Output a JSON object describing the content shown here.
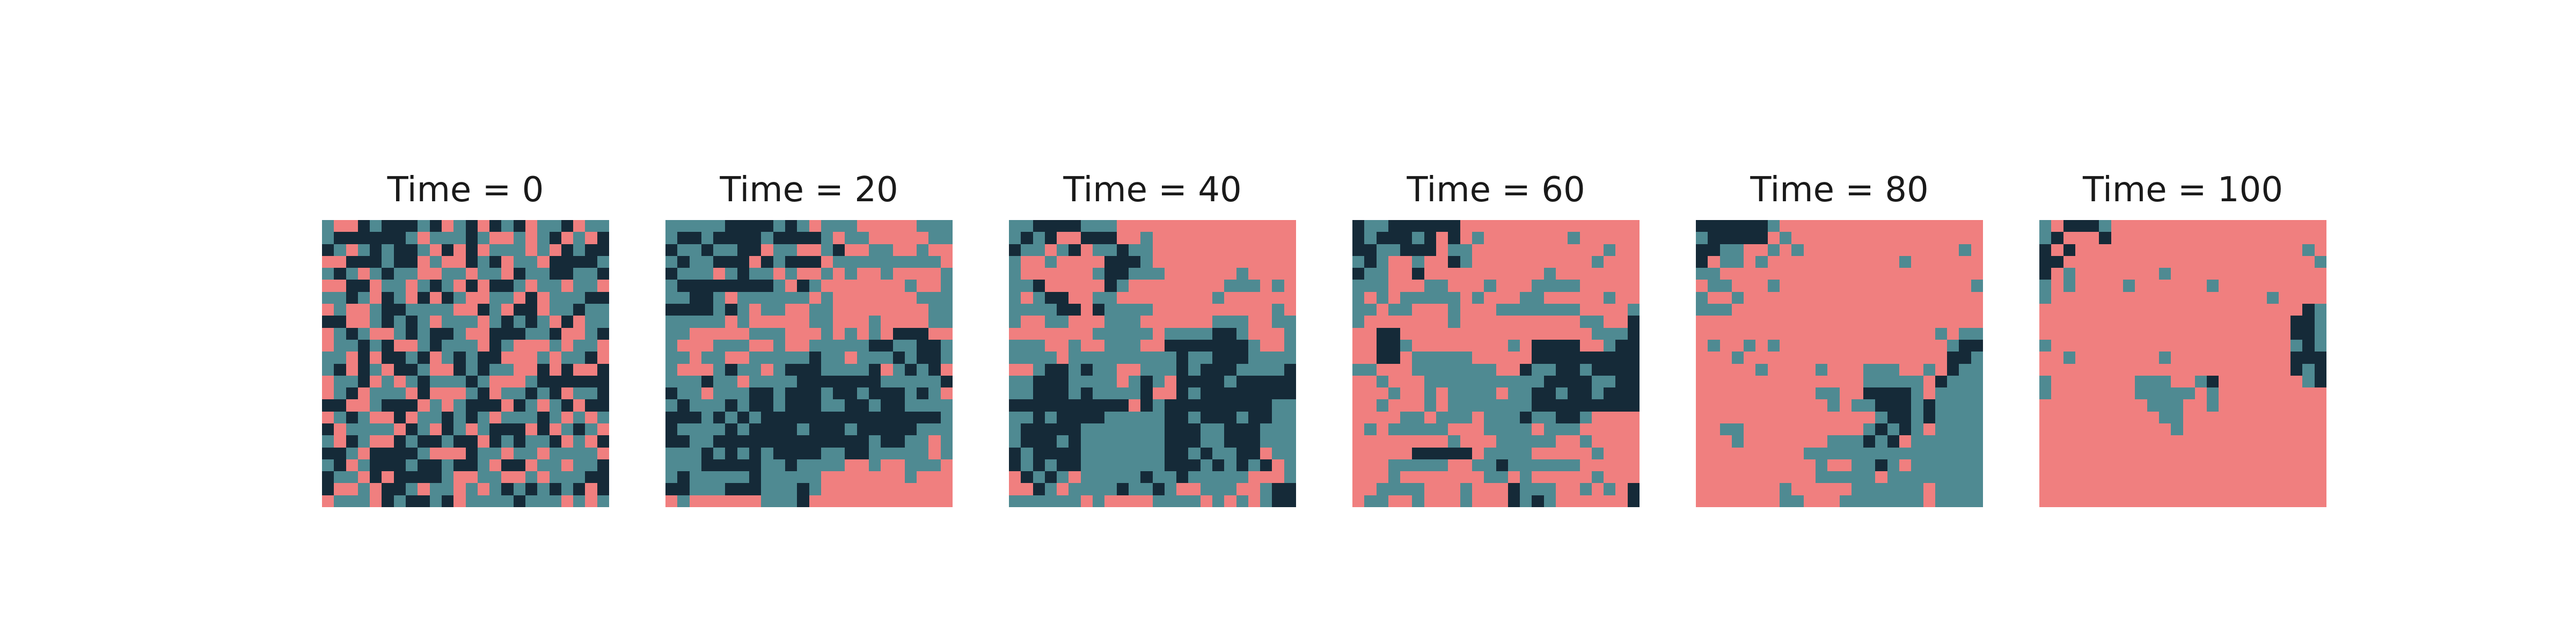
{
  "chart_data": {
    "type": "heatmap",
    "grid_size": 24,
    "colors": {
      "0": "#F07F7F",
      "1": "#4F8A92",
      "2": "#152A38"
    },
    "panels": [
      {
        "title": "Time = 0",
        "rows": [
          "100212221201202120112011",
          "122222210111210010120102",
          "210121221020201110102122",
          "002221220100212011022221",
          "121012110011011021122112",
          "002201101210202210110110",
          "112102102021001102011122",
          "010012211110021022011211",
          "220012121011101212102011",
          "012100121221002221120012",
          "011212001211102100010110",
          "110202212012122000101120",
          "120210221002121100202002",
          "011201012111210001222222",
          "012011102000120112120112",
          "220012220101222021012022",
          "012100201121210111210101",
          "201111021021012220201210",
          "102100212212202121120102",
          "221022221000211011011110",
          "120122212212210220110112",
          "211020222210011001011122",
          "200102210110101212121202",
          "011102122120111121110101"
        ]
      },
      {
        "title": "Time = 20",
        "rows": [
          "111112222121011100000111",
          "122122221222210110000011",
          "211211220110012001100100",
          "121122202122201111111110",
          "211101211010010100100001",
          "122222222102100000001001",
          "112210111111010000000111",
          "222212101100110000000011",
          "111110100000110001000011",
          "110000011100010101022200",
          "100011100100111112211221",
          "110110011111211011121221",
          "100012110122211112012120",
          "111211011112222222111112",
          "211011122122212212221210",
          "121112122122211221221111",
          "222121212222222222222221",
          "211112122221222122222111",
          "221122222222222221221101",
          "111212121222211221111101",
          "111222221121111001001110",
          "121111121111100000001000",
          "221112221112100000000000",
          "010000001112000000000000"
        ]
      },
      {
        "title": "Time = 40",
        "rows": [
          "112222111000000000000000",
          "121200222001000000000000",
          "211012011211000000000000",
          "100100002221000000000000",
          "100000012211100000010000",
          "112000002100000000111010",
          "101220011000000001000000",
          "111122021111000000000010",
          "100110001110000001110011",
          "000000011111011112210001",
          "111001001110022222221001",
          "111101111111112112221111",
          "001221211001112122211112",
          "112221111012102222122222",
          "112221211112002122222222",
          "222222222202122222222211",
          "112122221111122122212211",
          "122222111111122211222111",
          "122212111111122211222111",
          "212222111111122121122011",
          "212122111111122212121201",
          "021210111112112111110001",
          "002101111211210011100122",
          "111111010000111101010122"
        ]
      },
      {
        "title": "Time = 60",
        "rows": [
          "211222222000000000000000",
          "212221202010000000100000",
          "221122201100000000000100",
          "121001002100000000001000",
          "211002000000000010000000",
          "111000110001000111100000",
          "101011111010001100000100",
          "110110001000111111100001",
          "100000001000000000011002",
          "002200000000000000001112",
          "002210000000010222200122",
          "002201111100000222222222",
          "110001111111002112212222",
          "001000111111111122221122",
          "000100101111011221221222",
          "001000101111111222222222",
          "000011011101112112210000",
          "010111110001111011100000",
          "000000001000111110010000",
          "000002222201111000001000",
          "000111110011211111100000",
          "000100000001101000001000",
          "001111000100021110010102",
          "011001000100021210000002"
        ]
      },
      {
        "title": "Time = 80",
        "rows": [
          "222222100000000000000000",
          "122222010000000000000000",
          "221100101000000000000010",
          "201101000000000001000000",
          "110000000000000000000000",
          "011000100000000000000001",
          "100100000000000000000000",
          "111000000000000000000000",
          "000000000000000000000000",
          "000000000000000000001011",
          "010010100000000000000122",
          "000100000000000000000221",
          "000001000010001110010211",
          "000000000000001111102111",
          "000000000011002222101111",
          "000000000001011222121111",
          "000000000000000122121111",
          "001100000000001212101111",
          "000100000001112120111111",
          "000000000111111111111111",
          "000000000010011210111111",
          "000000000011111011111111",
          "000000010000011111101111",
          "000000011000111111101111"
        ]
      },
      {
        "title": "Time = 100",
        "rows": [
          "102221000000000000000000",
          "120002000000000000000000",
          "202000000000000000000010",
          "220000000000000000000001",
          "201000000010000000000000",
          "101000010000001000000000",
          "100000000000000000010000",
          "000000000000000000000021",
          "000000000000000000000221",
          "000000000000000000000221",
          "100000000000000000000121",
          "001000000010000000000222",
          "000000000000000000000212",
          "100000001110012000000012",
          "100000001111101000000000",
          "000000000111001000000000",
          "000000000011000000000000",
          "000000000001000000000000",
          "000000000000000000000000",
          "000000000000000000000000",
          "000000000000000000000000",
          "000000000000000000000000",
          "000000000000000000000000",
          "000000000000000000000000"
        ]
      }
    ]
  }
}
